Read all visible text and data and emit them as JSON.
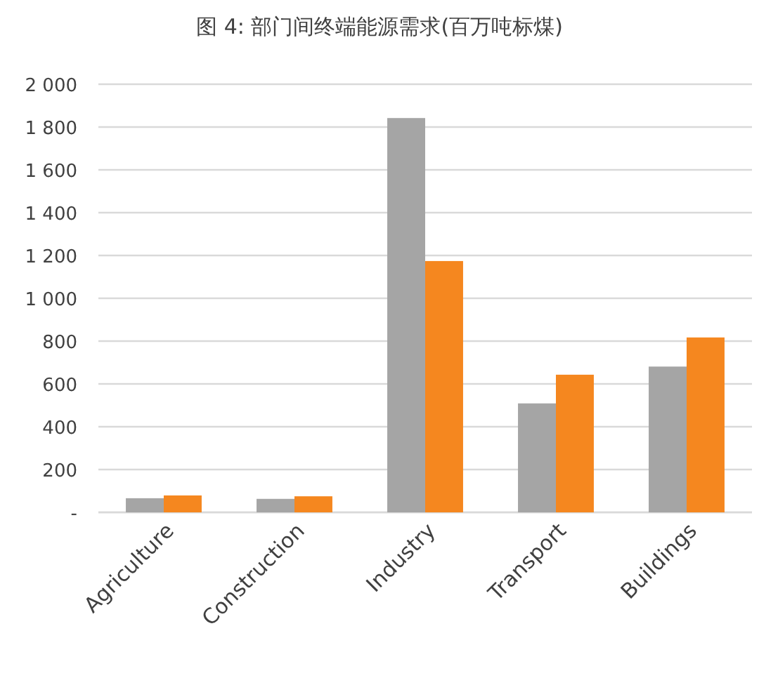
{
  "chart_data": {
    "type": "bar",
    "title": "图 4: 部门间终端能源需求(百万吨标煤)",
    "categories": [
      "Agriculture",
      "Construction",
      "Industry",
      "Transport",
      "Buildings"
    ],
    "series": [
      {
        "color": "#a5a5a5",
        "values": [
          66,
          63,
          1842,
          509,
          681
        ]
      },
      {
        "color": "#f5871f",
        "values": [
          79,
          75,
          1174,
          643,
          817
        ]
      }
    ],
    "ylim": [
      0,
      2000
    ],
    "yticks": [
      {
        "value": 0,
        "label": "-"
      },
      {
        "value": 200,
        "label": "200"
      },
      {
        "value": 400,
        "label": "400"
      },
      {
        "value": 600,
        "label": "600"
      },
      {
        "value": 800,
        "label": "800"
      },
      {
        "value": 1000,
        "label": "1 000"
      },
      {
        "value": 1200,
        "label": "1 200"
      },
      {
        "value": 1400,
        "label": "1 400"
      },
      {
        "value": 1600,
        "label": "1 600"
      },
      {
        "value": 1800,
        "label": "1 800"
      },
      {
        "value": 2000,
        "label": "2 000"
      }
    ],
    "grid": "y"
  }
}
